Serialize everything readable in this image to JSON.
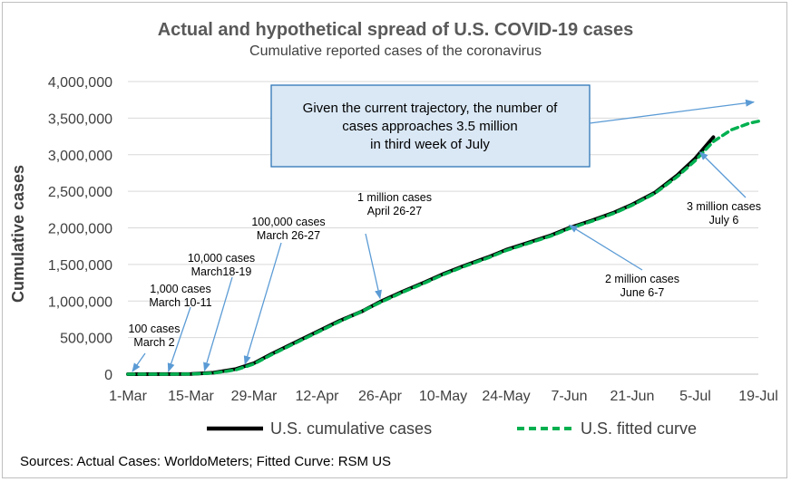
{
  "chart_data": {
    "type": "line",
    "title": "Actual and hypothetical spread of U.S. COVID-19 cases",
    "subtitle": "Cumulative reported cases of the coronavirus",
    "ylabel": "Cumulative cases",
    "xlabel": "",
    "ylim": [
      0,
      4000000
    ],
    "y_ticks": [
      0,
      500000,
      1000000,
      1500000,
      2000000,
      2500000,
      3000000,
      3500000,
      4000000
    ],
    "y_tick_labels": [
      "0",
      "500,000",
      "1,000,000",
      "1,500,000",
      "2,000,000",
      "2,500,000",
      "3,000,000",
      "3,500,000",
      "4,000,000"
    ],
    "x_tick_labels": [
      "1-Mar",
      "15-Mar",
      "29-Mar",
      "12-Apr",
      "26-Apr",
      "10-May",
      "24-May",
      "7-Jun",
      "21-Jun",
      "5-Jul",
      "19-Jul"
    ],
    "x_ticks": [
      "2020-03-01",
      "2020-03-15",
      "2020-03-29",
      "2020-04-12",
      "2020-04-26",
      "2020-05-10",
      "2020-05-24",
      "2020-06-07",
      "2020-06-21",
      "2020-07-05",
      "2020-07-19"
    ],
    "grid": "horizontal",
    "legend_position": "bottom",
    "series": [
      {
        "name": "U.S. cumulative cases",
        "color": "#000000",
        "style": "solid",
        "x": [
          "2020-03-01",
          "2020-03-10",
          "2020-03-15",
          "2020-03-20",
          "2020-03-25",
          "2020-03-29",
          "2020-04-02",
          "2020-04-07",
          "2020-04-12",
          "2020-04-17",
          "2020-04-22",
          "2020-04-26",
          "2020-05-01",
          "2020-05-06",
          "2020-05-10",
          "2020-05-15",
          "2020-05-20",
          "2020-05-24",
          "2020-05-29",
          "2020-06-03",
          "2020-06-07",
          "2020-06-12",
          "2020-06-17",
          "2020-06-21",
          "2020-06-26",
          "2020-07-01",
          "2020-07-05",
          "2020-07-09"
        ],
        "values": [
          100,
          1000,
          3500,
          20000,
          70000,
          150000,
          280000,
          430000,
          580000,
          730000,
          860000,
          990000,
          1130000,
          1260000,
          1370000,
          1490000,
          1600000,
          1700000,
          1800000,
          1900000,
          2000000,
          2100000,
          2210000,
          2320000,
          2480000,
          2720000,
          2950000,
          3240000
        ]
      },
      {
        "name": "U.S. fitted curve",
        "color": "#00b050",
        "style": "dashed",
        "x": [
          "2020-03-01",
          "2020-03-10",
          "2020-03-15",
          "2020-03-20",
          "2020-03-25",
          "2020-03-29",
          "2020-04-02",
          "2020-04-07",
          "2020-04-12",
          "2020-04-17",
          "2020-04-22",
          "2020-04-26",
          "2020-05-01",
          "2020-05-06",
          "2020-05-10",
          "2020-05-15",
          "2020-05-20",
          "2020-05-24",
          "2020-05-29",
          "2020-06-03",
          "2020-06-07",
          "2020-06-12",
          "2020-06-17",
          "2020-06-21",
          "2020-06-26",
          "2020-07-01",
          "2020-07-05",
          "2020-07-09",
          "2020-07-13",
          "2020-07-17",
          "2020-07-20"
        ],
        "values": [
          0,
          0,
          2000,
          15000,
          60000,
          140000,
          270000,
          420000,
          570000,
          720000,
          860000,
          980000,
          1120000,
          1250000,
          1360000,
          1480000,
          1590000,
          1690000,
          1790000,
          1890000,
          1990000,
          2090000,
          2200000,
          2310000,
          2470000,
          2700000,
          2920000,
          3180000,
          3340000,
          3430000,
          3470000
        ]
      }
    ],
    "annotations": [
      {
        "lines": [
          "100 cases",
          "March 2"
        ],
        "date": "2020-03-02",
        "value": 100
      },
      {
        "lines": [
          "1,000 cases",
          "March 10-11"
        ],
        "date": "2020-03-10",
        "value": 1000
      },
      {
        "lines": [
          "10,000 cases",
          "March18-19"
        ],
        "date": "2020-03-18",
        "value": 10000
      },
      {
        "lines": [
          "100,000 cases",
          "March 26-27"
        ],
        "date": "2020-03-27",
        "value": 100000
      },
      {
        "lines": [
          "1 million cases",
          "April 26-27"
        ],
        "date": "2020-04-26",
        "value": 1000000
      },
      {
        "lines": [
          "2 million cases",
          "June 6-7"
        ],
        "date": "2020-06-07",
        "value": 2000000
      },
      {
        "lines": [
          "3 million cases",
          "July 6"
        ],
        "date": "2020-07-06",
        "value": 3000000
      }
    ],
    "callout": {
      "lines": [
        "Given the current trajectory, the number of",
        "cases approaches 3.5 million",
        "in third week of July"
      ],
      "fill": "#dae8f5",
      "border": "#2e75b6"
    }
  },
  "source_note": "Sources: Actual Cases: WorldoMeters; Fitted Curve: RSM US"
}
